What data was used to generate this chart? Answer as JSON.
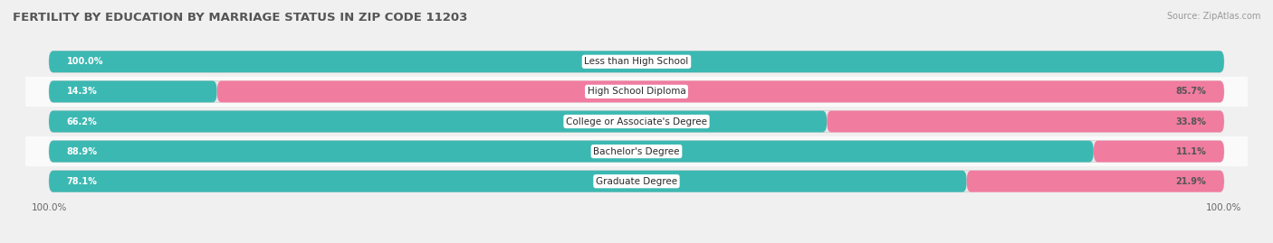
{
  "title": "FERTILITY BY EDUCATION BY MARRIAGE STATUS IN ZIP CODE 11203",
  "source": "Source: ZipAtlas.com",
  "categories": [
    "Less than High School",
    "High School Diploma",
    "College or Associate's Degree",
    "Bachelor's Degree",
    "Graduate Degree"
  ],
  "married": [
    100.0,
    14.3,
    66.2,
    88.9,
    78.1
  ],
  "unmarried": [
    0.0,
    85.7,
    33.8,
    11.1,
    21.9
  ],
  "married_color": "#3cb8b2",
  "unmarried_color": "#f07ca0",
  "married_light_color": "#b2e2e0",
  "unmarried_light_color": "#fadadd",
  "pill_bg_color": "#e8e8e8",
  "row_bg_odd": "#f0f0f0",
  "row_bg_even": "#fafafa",
  "title_fontsize": 9.5,
  "source_fontsize": 7,
  "bar_label_fontsize": 7,
  "legend_fontsize": 8,
  "category_fontsize": 7.5,
  "axis_label_fontsize": 7.5,
  "fig_bg": "#f0f0f0"
}
